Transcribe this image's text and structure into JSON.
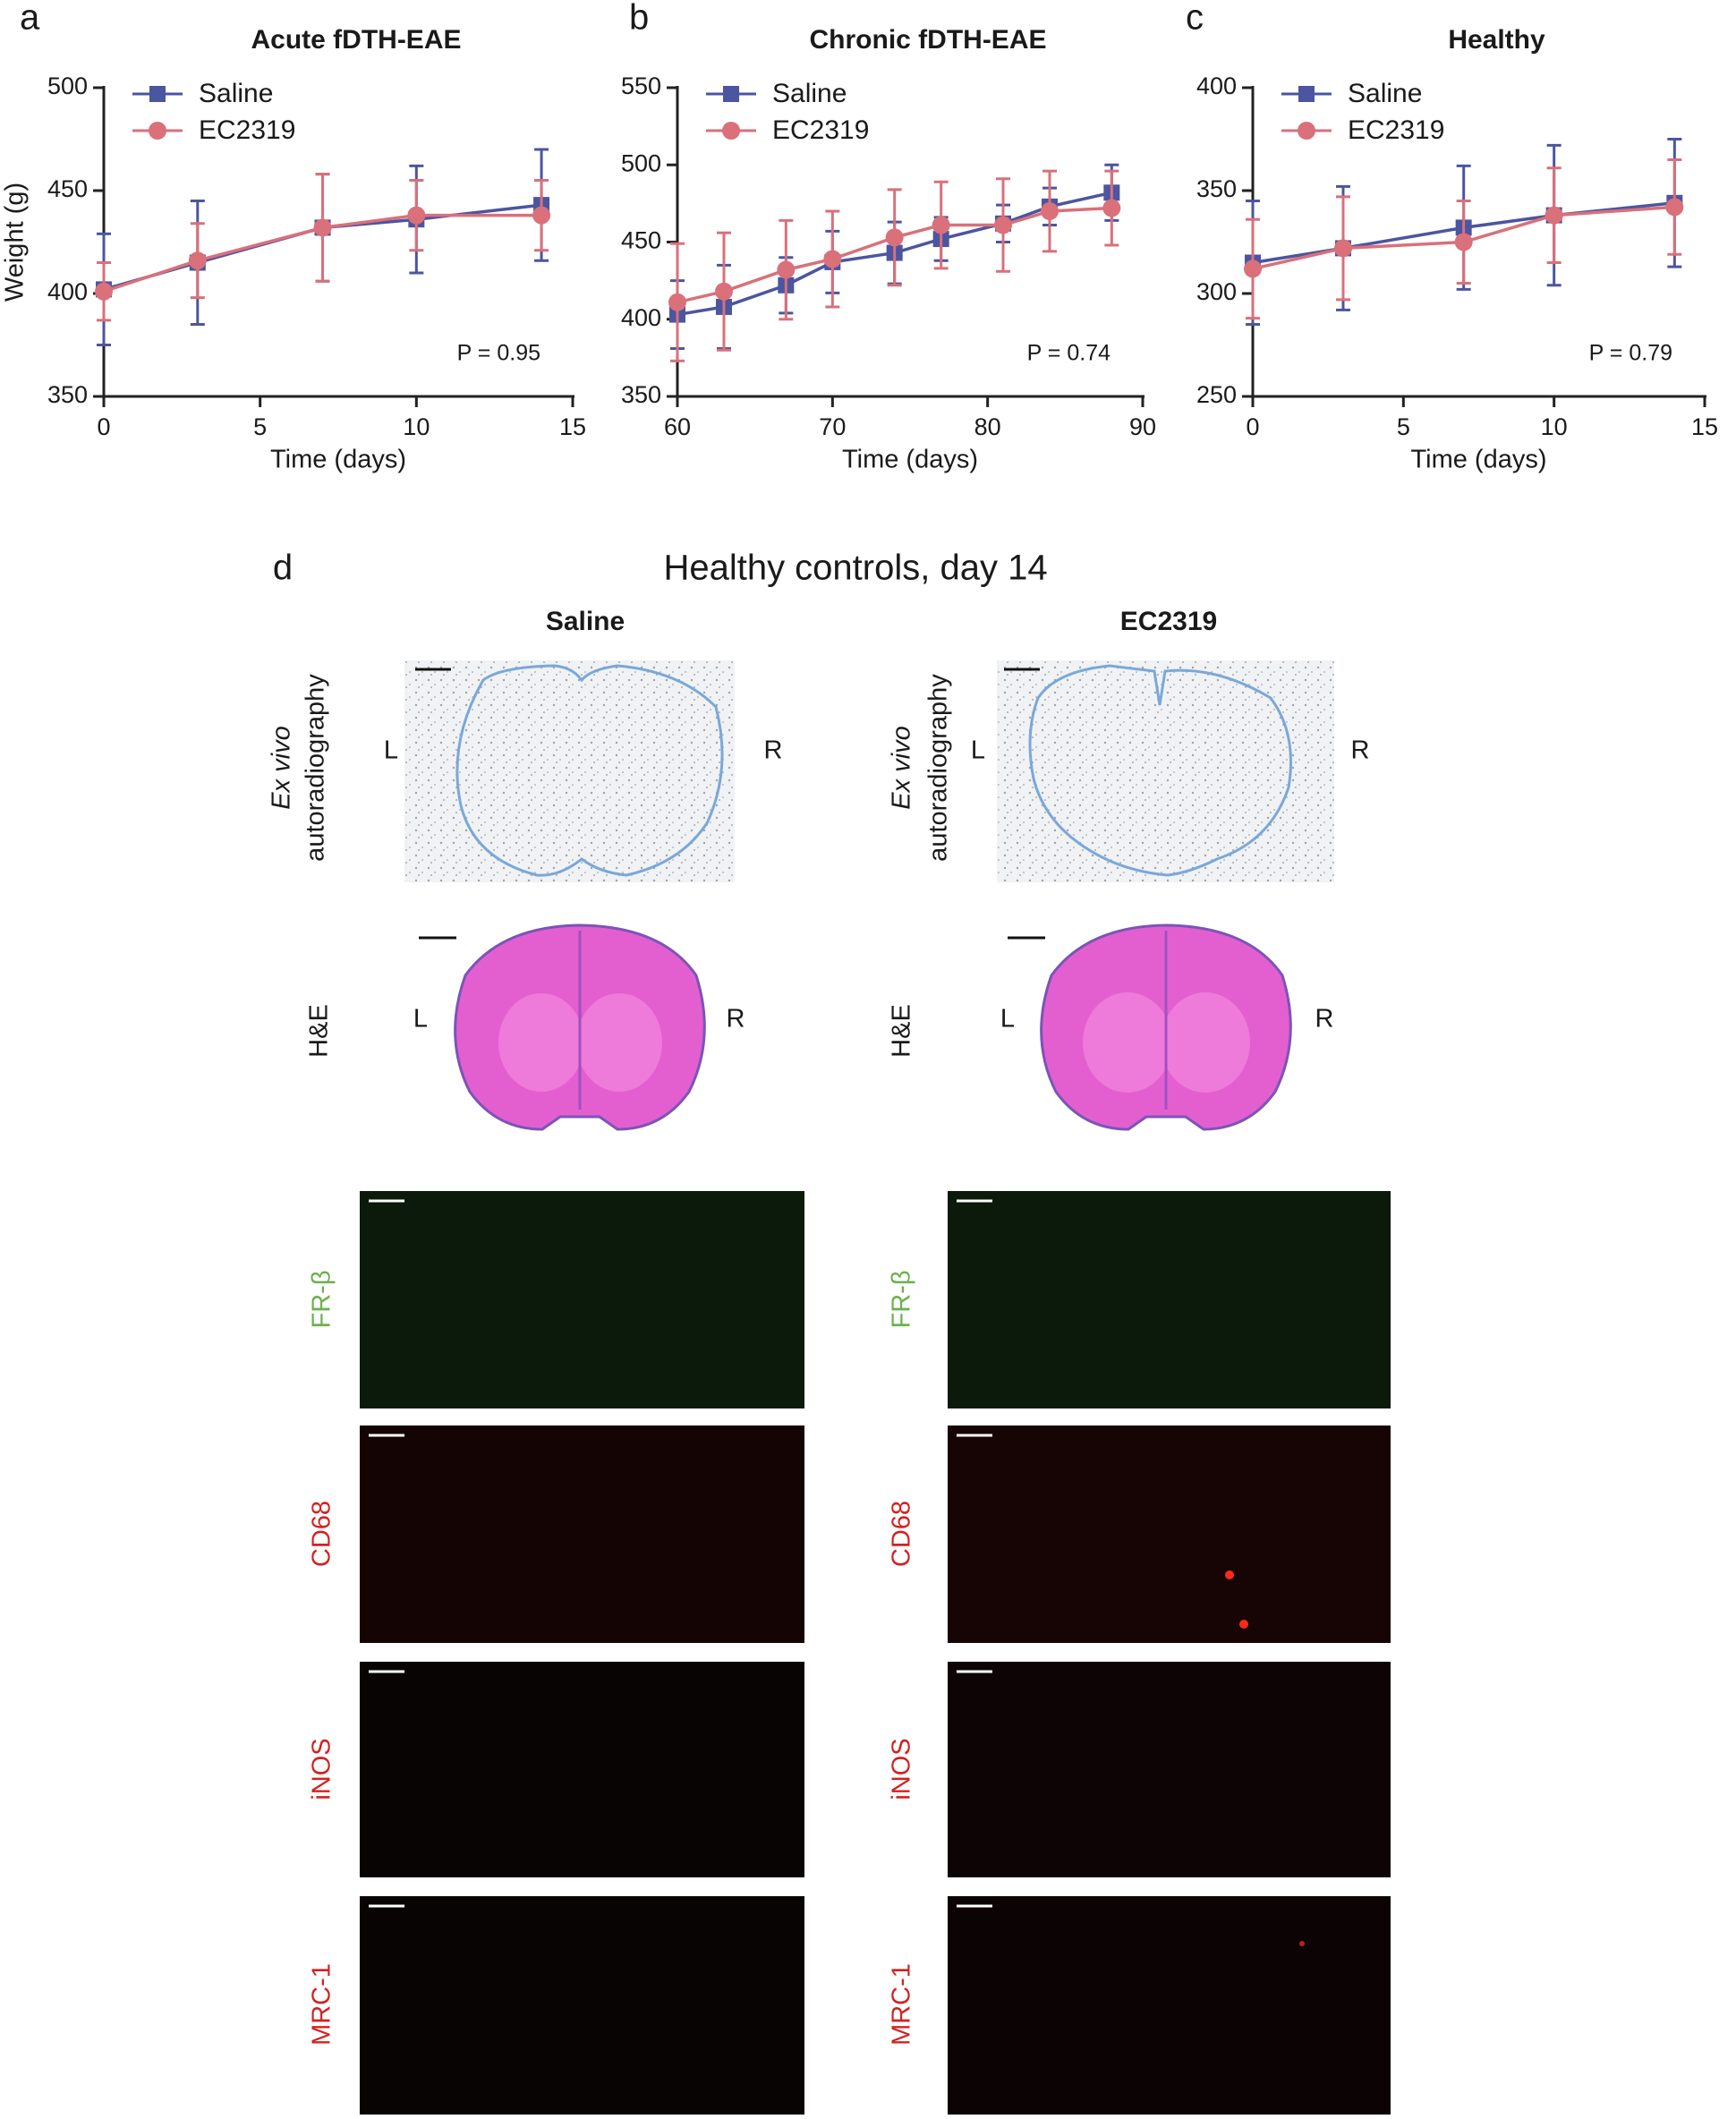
{
  "chart_data": [
    {
      "type": "line",
      "panel": "a",
      "title": "Acute fDTH-EAE",
      "x_label": "Time (days)",
      "y_label": "Weight (g)",
      "annotation": "P = 0.95",
      "x": [
        0,
        3,
        7,
        10,
        14
      ],
      "xlim": [
        0,
        15
      ],
      "xticks": [
        0,
        5,
        10,
        15
      ],
      "ylim": [
        350,
        500
      ],
      "yticks": [
        350,
        400,
        450,
        500
      ],
      "grid": false,
      "legend": "top-left",
      "series": [
        {
          "name": "Saline",
          "color": "#4b55a0",
          "marker": "square",
          "values": [
            402,
            415,
            432,
            436,
            443
          ],
          "errors": [
            27,
            30,
            26,
            26,
            27
          ]
        },
        {
          "name": "EC2319",
          "color": "#d9707a",
          "marker": "circle",
          "values": [
            401,
            416,
            432,
            438,
            438
          ],
          "errors": [
            14,
            18,
            26,
            17,
            17
          ]
        }
      ]
    },
    {
      "type": "line",
      "panel": "b",
      "title": "Chronic fDTH-EAE",
      "x_label": "Time (days)",
      "annotation": "P = 0.74",
      "x": [
        60,
        63,
        67,
        70,
        74,
        77,
        81,
        84,
        88
      ],
      "xlim": [
        60,
        90
      ],
      "xticks": [
        60,
        70,
        80,
        90
      ],
      "ylim": [
        350,
        550
      ],
      "yticks": [
        350,
        400,
        450,
        500,
        550
      ],
      "grid": false,
      "legend": "top-left",
      "series": [
        {
          "name": "Saline",
          "color": "#4b55a0",
          "marker": "square",
          "values": [
            403,
            408,
            422,
            437,
            443,
            452,
            462,
            473,
            482
          ],
          "errors": [
            22,
            27,
            18,
            20,
            20,
            14,
            12,
            12,
            18
          ]
        },
        {
          "name": "EC2319",
          "color": "#d9707a",
          "marker": "circle",
          "values": [
            411,
            418,
            432,
            439,
            453,
            461,
            461,
            470,
            472
          ],
          "errors": [
            38,
            38,
            32,
            31,
            31,
            28,
            30,
            26,
            24
          ]
        }
      ]
    },
    {
      "type": "line",
      "panel": "c",
      "title": "Healthy",
      "x_label": "Time (days)",
      "annotation": "P = 0.79",
      "x": [
        0,
        3,
        7,
        10,
        14
      ],
      "xlim": [
        0,
        15
      ],
      "xticks": [
        0,
        5,
        10,
        15
      ],
      "ylim": [
        250,
        400
      ],
      "yticks": [
        250,
        300,
        350,
        400
      ],
      "grid": false,
      "legend": "top-left",
      "series": [
        {
          "name": "Saline",
          "color": "#4b55a0",
          "marker": "square",
          "values": [
            315,
            322,
            332,
            338,
            344
          ],
          "errors": [
            30,
            30,
            30,
            34,
            31
          ]
        },
        {
          "name": "EC2319",
          "color": "#d9707a",
          "marker": "circle",
          "values": [
            312,
            322,
            325,
            338,
            342
          ],
          "errors": [
            24,
            25,
            20,
            23,
            23
          ]
        }
      ]
    }
  ],
  "panel_d": {
    "label": "d",
    "title": "Healthy controls, day 14",
    "columns": [
      "Saline",
      "EC2319"
    ],
    "autoradiography_label": [
      "Ex vivo",
      "autoradiography"
    ],
    "sides": [
      "L",
      "R"
    ],
    "he_label": "H&E",
    "stains": [
      "FR-β",
      "CD68",
      "iNOS",
      "MRC-1"
    ]
  }
}
